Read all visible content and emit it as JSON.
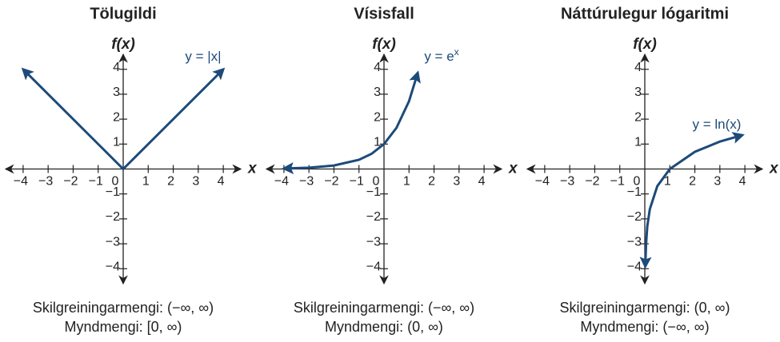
{
  "chart_data": [
    {
      "type": "line",
      "title": "Tölugildi",
      "xlabel": "x",
      "ylabel": "f(x)",
      "xlim": [
        -4.7,
        4.7
      ],
      "ylim": [
        -4.6,
        4.6
      ],
      "xticks": [
        {
          "value": -4,
          "label": "−4"
        },
        {
          "value": -3,
          "label": "−3"
        },
        {
          "value": -2,
          "label": "−2"
        },
        {
          "value": -1,
          "label": "−1"
        },
        0,
        1,
        2,
        3,
        4
      ],
      "yticks": [
        {
          "value": -4,
          "label": "−4"
        },
        {
          "value": -3,
          "label": "−3"
        },
        {
          "value": -2,
          "label": "−2"
        },
        {
          "value": -1,
          "label": "−1"
        },
        1,
        2,
        3,
        4
      ],
      "series": [
        {
          "name": "y = |x|",
          "color": "#1d4a7a",
          "x": [
            -4,
            0,
            4
          ],
          "values": [
            4,
            0,
            4
          ]
        }
      ],
      "domain_text": "Skilgreiningarmengi: (−∞, ∞)",
      "range_text": "Myndmengi: [0, ∞)"
    },
    {
      "type": "line",
      "title": "Vísisfall",
      "xlabel": "x",
      "ylabel": "f(x)",
      "xlim": [
        -4.7,
        4.7
      ],
      "ylim": [
        -4.6,
        4.6
      ],
      "xticks": [
        {
          "value": -4,
          "label": "−4"
        },
        {
          "value": -3,
          "label": "−3"
        },
        {
          "value": -2,
          "label": "−2"
        },
        {
          "value": -1,
          "label": "−1"
        },
        0,
        1,
        2,
        3,
        4
      ],
      "yticks": [
        {
          "value": -4,
          "label": "−4"
        },
        {
          "value": -3,
          "label": "−3"
        },
        {
          "value": -2,
          "label": "−2"
        },
        {
          "value": -1,
          "label": "−1"
        },
        1,
        2,
        3,
        4
      ],
      "series": [
        {
          "name": "y = e",
          "name_sup": "x",
          "color": "#1d4a7a",
          "x": [
            -4,
            -3,
            -2,
            -1,
            -0.5,
            0,
            0.5,
            1,
            1.35
          ],
          "values": [
            0.02,
            0.05,
            0.14,
            0.37,
            0.61,
            1,
            1.65,
            2.72,
            3.86
          ]
        }
      ],
      "domain_text": "Skilgreiningarmengi: (−∞, ∞)",
      "range_text": "Myndmengi: (0, ∞)"
    },
    {
      "type": "line",
      "title": "Náttúrulegur lógaritmi",
      "xlabel": "x",
      "ylabel": "f(x)",
      "xlim": [
        -4.7,
        4.7
      ],
      "ylim": [
        -4.6,
        4.6
      ],
      "xticks": [
        {
          "value": -4,
          "label": "−4"
        },
        {
          "value": -3,
          "label": "−3"
        },
        {
          "value": -2,
          "label": "−2"
        },
        {
          "value": -1,
          "label": "−1"
        },
        0,
        1,
        2,
        3,
        4
      ],
      "yticks": [
        {
          "value": -4,
          "label": "−4"
        },
        {
          "value": -3,
          "label": "−3"
        },
        {
          "value": -2,
          "label": "−2"
        },
        {
          "value": -1,
          "label": "−1"
        },
        1,
        2,
        3,
        4
      ],
      "series": [
        {
          "name": "y = ln(x)",
          "color": "#1d4a7a",
          "x": [
            0.02,
            0.05,
            0.1,
            0.2,
            0.5,
            1,
            2,
            3,
            3.9
          ],
          "values": [
            -3.91,
            -3.0,
            -2.3,
            -1.61,
            -0.69,
            0,
            0.69,
            1.1,
            1.36
          ]
        }
      ],
      "domain_text": "Skilgreiningarmengi: (0, ∞)",
      "range_text": "Myndmengi: (−∞, ∞)"
    }
  ]
}
